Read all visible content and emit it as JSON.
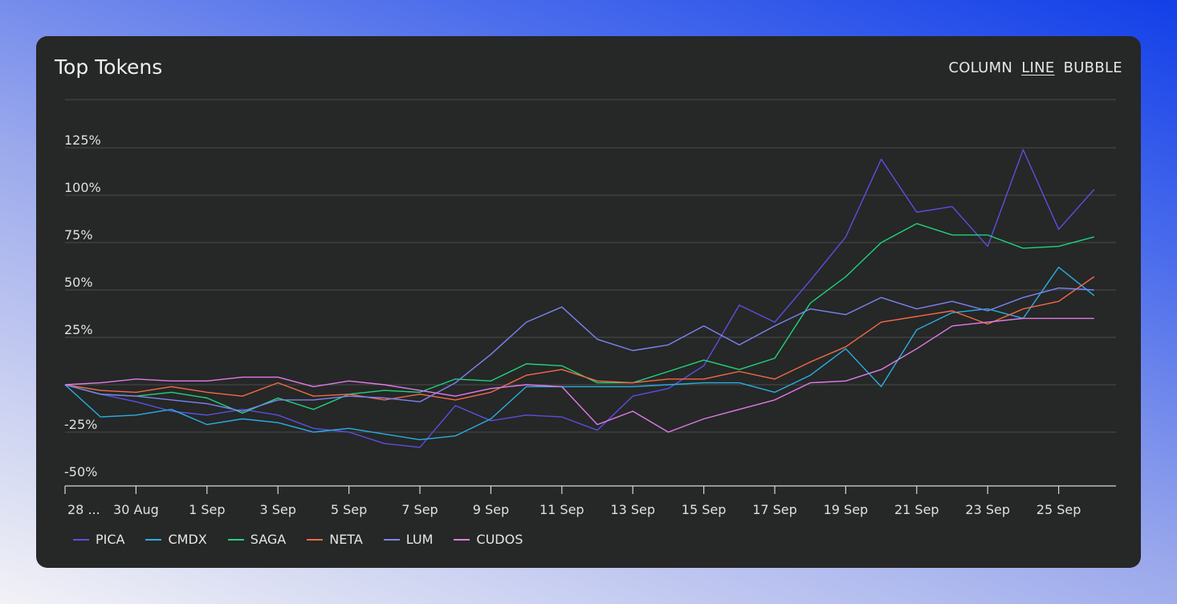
{
  "title": "Top Tokens",
  "view_tabs": [
    {
      "label": "COLUMN",
      "active": false
    },
    {
      "label": "LINE",
      "active": true
    },
    {
      "label": "BUBBLE",
      "active": false
    }
  ],
  "chart_data": {
    "type": "line",
    "title": "Top Tokens",
    "ylim": [
      -50,
      150
    ],
    "y_ticks": [
      -50,
      -25,
      0,
      25,
      50,
      75,
      100,
      125
    ],
    "y_tick_labels": [
      "-50%",
      "-25%",
      "",
      "25%",
      "50%",
      "75%",
      "100%",
      "125%"
    ],
    "x_tick_labels": [
      "28 ...",
      "30 Aug",
      "1 Sep",
      "3 Sep",
      "5 Sep",
      "7 Sep",
      "9 Sep",
      "11 Sep",
      "13 Sep",
      "15 Sep",
      "17 Sep",
      "19 Sep",
      "21 Sep",
      "23 Sep",
      "25 Sep"
    ],
    "x_dates": [
      "28 Aug",
      "29 Aug",
      "30 Aug",
      "31 Aug",
      "1 Sep",
      "2 Sep",
      "3 Sep",
      "4 Sep",
      "5 Sep",
      "6 Sep",
      "7 Sep",
      "8 Sep",
      "9 Sep",
      "10 Sep",
      "11 Sep",
      "12 Sep",
      "13 Sep",
      "14 Sep",
      "15 Sep",
      "16 Sep",
      "17 Sep",
      "18 Sep",
      "19 Sep",
      "20 Sep",
      "21 Sep",
      "22 Sep",
      "23 Sep",
      "24 Sep",
      "25 Sep",
      "26 Sep"
    ],
    "grid": true,
    "legend_position": "bottom-left",
    "series": [
      {
        "name": "PICA",
        "color": "#5b4fe0",
        "values": [
          0,
          -5,
          -9,
          -14,
          -16,
          -13,
          -16,
          -23,
          -25,
          -31,
          -33,
          -11,
          -19,
          -16,
          -17,
          -24,
          -6,
          -2,
          10,
          42,
          33,
          55,
          78,
          119,
          91,
          94,
          73,
          124,
          82,
          103
        ]
      },
      {
        "name": "CMDX",
        "color": "#29aee0",
        "values": [
          0,
          -17,
          -16,
          -13,
          -21,
          -18,
          -20,
          -25,
          -23,
          -26,
          -29,
          -27,
          -18,
          -1,
          -1,
          -1,
          -1,
          0,
          1,
          1,
          -4,
          5,
          19,
          -1,
          29,
          38,
          40,
          35,
          62,
          47
        ]
      },
      {
        "name": "SAGA",
        "color": "#1fd47a",
        "values": [
          0,
          -5,
          -6,
          -4,
          -7,
          -15,
          -7,
          -13,
          -5,
          -3,
          -4,
          3,
          2,
          11,
          10,
          1,
          1,
          7,
          13,
          8,
          14,
          43,
          57,
          75,
          85,
          79,
          79,
          72,
          73,
          78
        ]
      },
      {
        "name": "NETA",
        "color": "#f26a47",
        "values": [
          0,
          -3,
          -4,
          -1,
          -4,
          -6,
          1,
          -6,
          -5,
          -8,
          -5,
          -8,
          -4,
          5,
          8,
          2,
          1,
          3,
          3,
          7,
          3,
          12,
          20,
          33,
          36,
          39,
          32,
          40,
          44,
          57
        ]
      },
      {
        "name": "LUM",
        "color": "#7a84f0",
        "values": [
          0,
          -5,
          -6,
          -8,
          -10,
          -14,
          -8,
          -8,
          -6,
          -7,
          -9,
          1,
          16,
          33,
          41,
          24,
          18,
          21,
          31,
          21,
          31,
          40,
          37,
          46,
          40,
          44,
          39,
          46,
          51,
          50
        ]
      },
      {
        "name": "CUDOS",
        "color": "#e17be8",
        "values": [
          0,
          1,
          3,
          2,
          2,
          4,
          4,
          -1,
          2,
          0,
          -3,
          -6,
          -2,
          0,
          -1,
          -21,
          -14,
          -25,
          -18,
          -13,
          -8,
          1,
          2,
          8,
          19,
          31,
          33,
          35,
          35,
          35
        ]
      }
    ]
  }
}
